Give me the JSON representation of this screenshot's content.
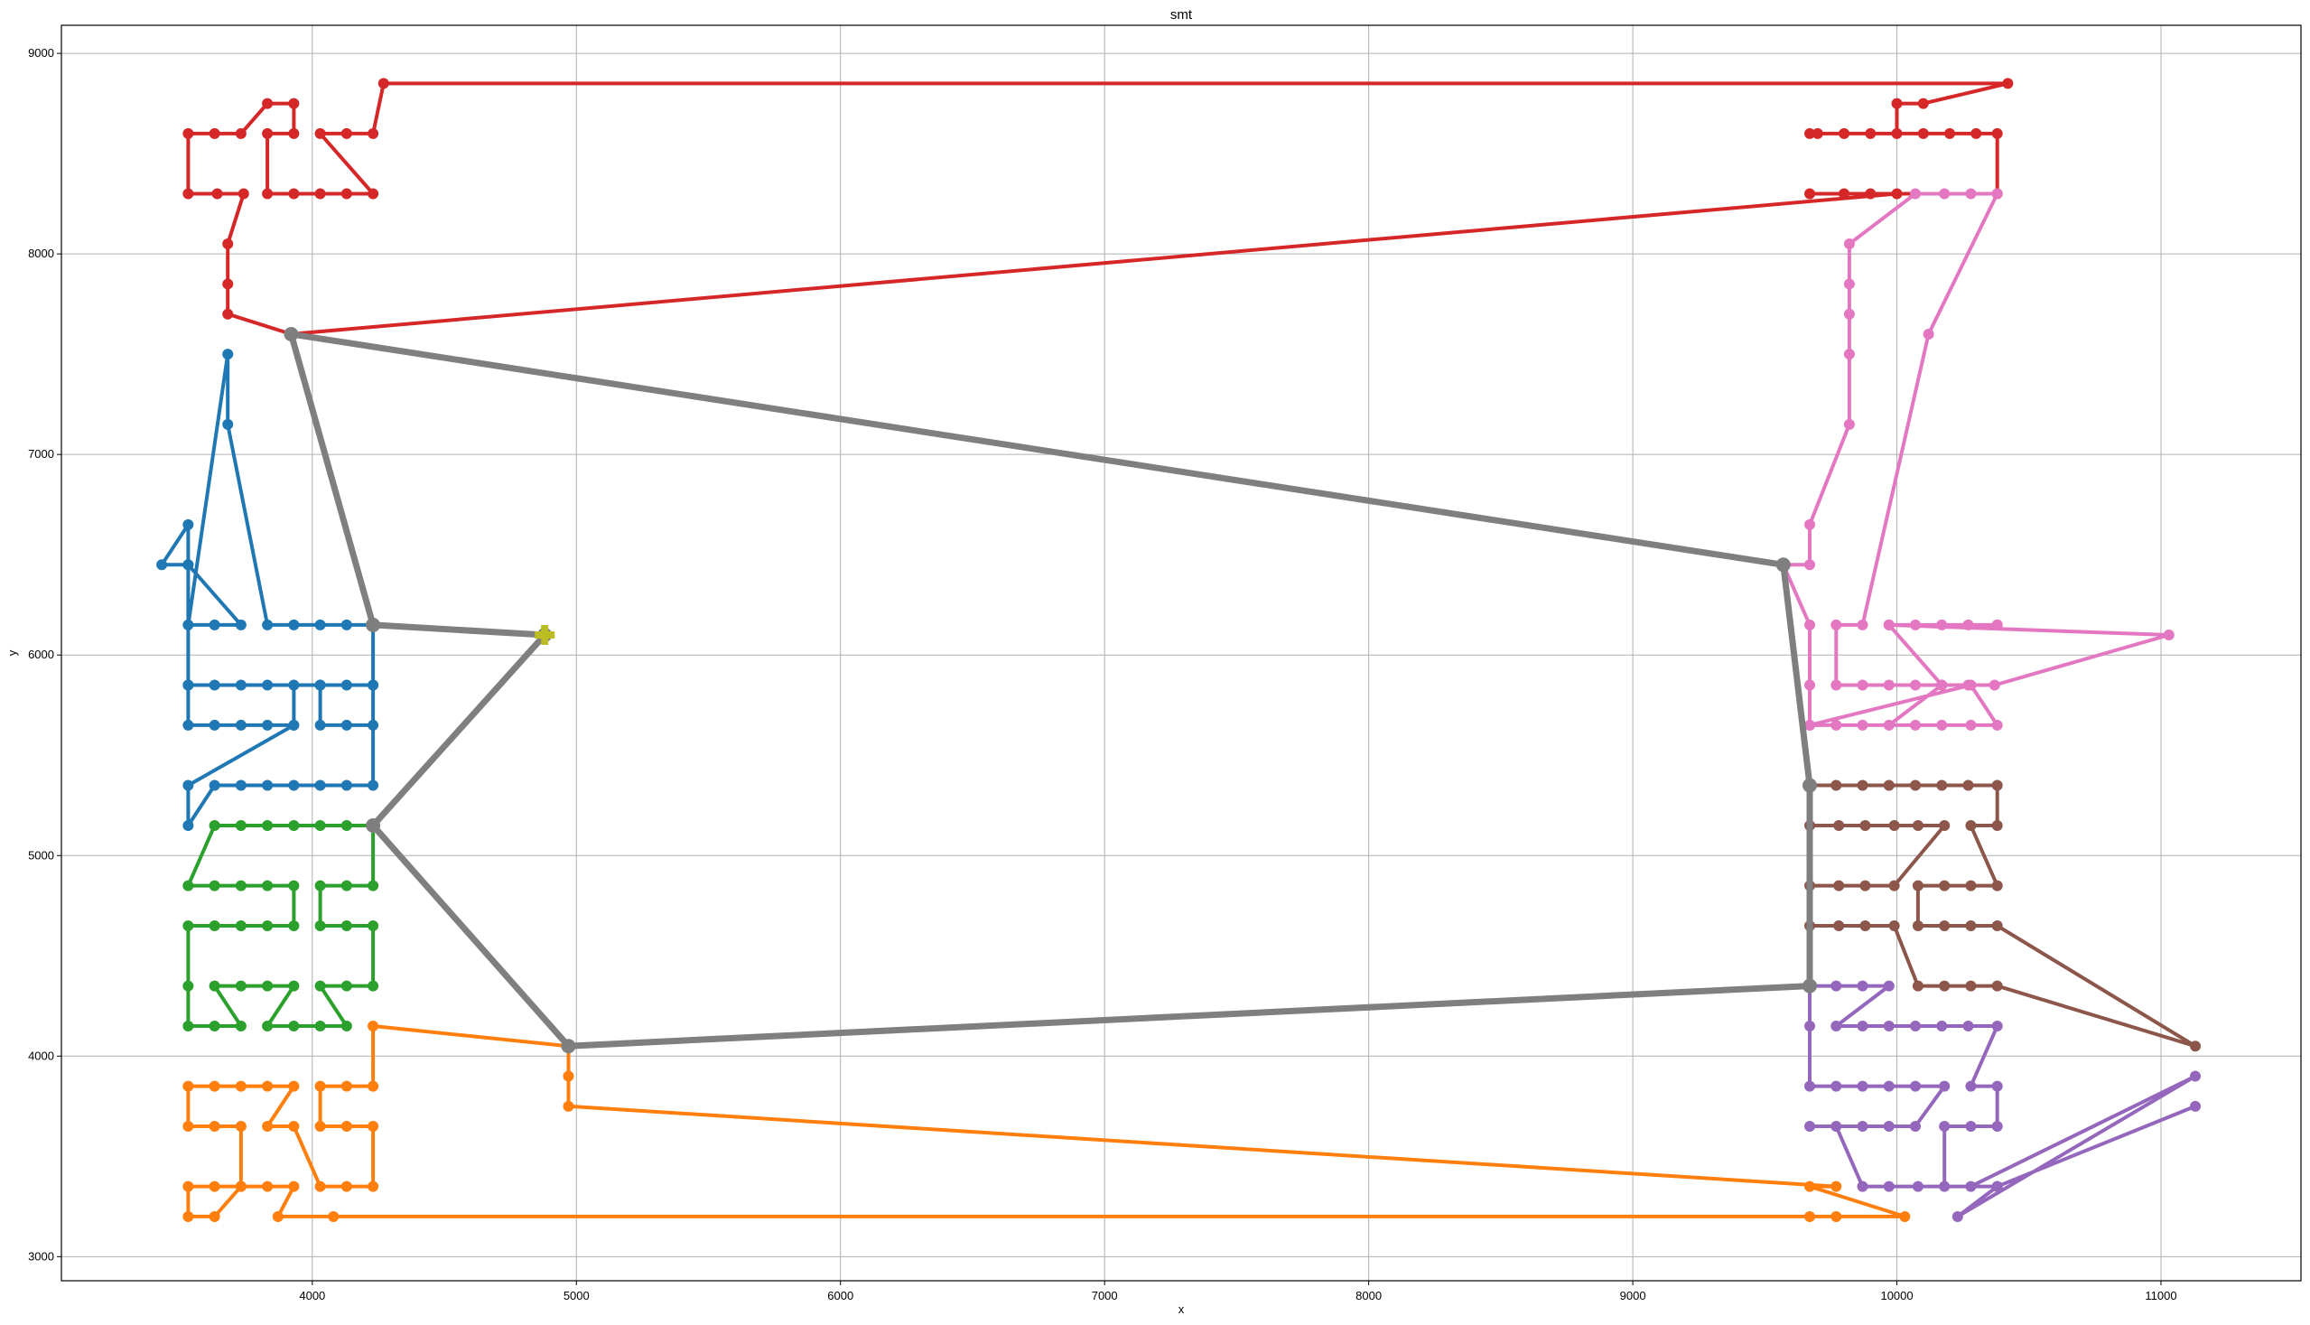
{
  "chart_data": {
    "type": "line",
    "title": "smt",
    "xlabel": "x",
    "ylabel": "y",
    "xlim": [
      3050,
      11530
    ],
    "ylim": [
      2880,
      9140
    ],
    "xticks": [
      4000,
      5000,
      6000,
      7000,
      8000,
      9000,
      10000,
      11000
    ],
    "yticks": [
      3000,
      4000,
      5000,
      6000,
      7000,
      8000,
      9000
    ],
    "grid": true,
    "series": [
      {
        "color": "#d62728",
        "points": [
          [
            3920,
            7600
          ],
          [
            3680,
            7700
          ],
          [
            3680,
            7850
          ],
          [
            3680,
            8050
          ],
          [
            3740,
            8300
          ],
          [
            3640,
            8300
          ],
          [
            3530,
            8300
          ],
          [
            3530,
            8600
          ],
          [
            3630,
            8600
          ],
          [
            3730,
            8600
          ],
          [
            3830,
            8750
          ],
          [
            3930,
            8750
          ],
          [
            3930,
            8600
          ],
          [
            3830,
            8600
          ],
          [
            3830,
            8300
          ],
          [
            3930,
            8300
          ],
          [
            4030,
            8300
          ],
          [
            4130,
            8300
          ],
          [
            4230,
            8300
          ],
          [
            4030,
            8600
          ],
          [
            4130,
            8600
          ],
          [
            4230,
            8600
          ],
          [
            4270,
            8850
          ],
          [
            10420,
            8850
          ],
          [
            10100,
            8750
          ],
          [
            10000,
            8750
          ],
          [
            10000,
            8600
          ],
          [
            9900,
            8600
          ],
          [
            9800,
            8600
          ],
          [
            9700,
            8600
          ],
          [
            9670,
            8600
          ],
          [
            10100,
            8600
          ],
          [
            10200,
            8600
          ],
          [
            10300,
            8600
          ],
          [
            10380,
            8600
          ],
          [
            10380,
            8300
          ],
          [
            9670,
            8300
          ],
          [
            9800,
            8300
          ],
          [
            9900,
            8300
          ],
          [
            10000,
            8300
          ],
          [
            3920,
            7600
          ]
        ]
      },
      {
        "color": "#1f77b4",
        "points": [
          [
            4230,
            6150
          ],
          [
            4130,
            6150
          ],
          [
            4030,
            6150
          ],
          [
            3930,
            6150
          ],
          [
            3830,
            6150
          ],
          [
            3680,
            7150
          ],
          [
            3680,
            7500
          ],
          [
            3530,
            6150
          ],
          [
            3630,
            6150
          ],
          [
            3730,
            6150
          ],
          [
            3530,
            6450
          ],
          [
            3430,
            6450
          ],
          [
            3530,
            6650
          ],
          [
            3530,
            6450
          ],
          [
            3530,
            5850
          ],
          [
            3630,
            5850
          ],
          [
            3730,
            5850
          ],
          [
            3830,
            5850
          ],
          [
            3930,
            5850
          ],
          [
            3930,
            5650
          ],
          [
            3830,
            5650
          ],
          [
            3730,
            5650
          ],
          [
            3630,
            5650
          ],
          [
            3530,
            5650
          ],
          [
            3530,
            5850
          ],
          [
            4030,
            5850
          ],
          [
            4230,
            5850
          ],
          [
            4230,
            5650
          ],
          [
            4130,
            5650
          ],
          [
            4030,
            5650
          ],
          [
            4030,
            5850
          ],
          [
            4130,
            5850
          ],
          [
            4230,
            5850
          ],
          [
            4230,
            6150
          ],
          [
            4230,
            5350
          ],
          [
            4130,
            5350
          ],
          [
            4030,
            5350
          ],
          [
            3930,
            5350
          ],
          [
            3830,
            5350
          ],
          [
            3730,
            5350
          ],
          [
            3630,
            5350
          ],
          [
            3530,
            5150
          ],
          [
            3530,
            5350
          ],
          [
            3930,
            5650
          ]
        ]
      },
      {
        "color": "#2ca02c",
        "points": [
          [
            4230,
            5150
          ],
          [
            4130,
            5150
          ],
          [
            4030,
            5150
          ],
          [
            3930,
            5150
          ],
          [
            3830,
            5150
          ],
          [
            3730,
            5150
          ],
          [
            3630,
            5150
          ],
          [
            3530,
            4850
          ],
          [
            3630,
            4850
          ],
          [
            3730,
            4850
          ],
          [
            3830,
            4850
          ],
          [
            3930,
            4850
          ],
          [
            3930,
            4650
          ],
          [
            3830,
            4650
          ],
          [
            3730,
            4650
          ],
          [
            3630,
            4650
          ],
          [
            3530,
            4650
          ],
          [
            3530,
            4350
          ],
          [
            3530,
            4150
          ],
          [
            3630,
            4150
          ],
          [
            3730,
            4150
          ],
          [
            3630,
            4350
          ],
          [
            3730,
            4350
          ],
          [
            3830,
            4350
          ],
          [
            3930,
            4350
          ],
          [
            3830,
            4150
          ],
          [
            3930,
            4150
          ],
          [
            4030,
            4150
          ],
          [
            4130,
            4150
          ],
          [
            4030,
            4350
          ],
          [
            4130,
            4350
          ],
          [
            4230,
            4350
          ],
          [
            4230,
            4650
          ],
          [
            4130,
            4650
          ],
          [
            4030,
            4650
          ],
          [
            4030,
            4850
          ],
          [
            4130,
            4850
          ],
          [
            4230,
            4850
          ],
          [
            4230,
            5150
          ]
        ]
      },
      {
        "color": "#ff7f0e",
        "points": [
          [
            4970,
            4050
          ],
          [
            4230,
            4150
          ],
          [
            4230,
            3850
          ],
          [
            4130,
            3850
          ],
          [
            4030,
            3850
          ],
          [
            4030,
            3650
          ],
          [
            4130,
            3650
          ],
          [
            4230,
            3650
          ],
          [
            4230,
            3350
          ],
          [
            4130,
            3350
          ],
          [
            4030,
            3350
          ],
          [
            3930,
            3650
          ],
          [
            3830,
            3650
          ],
          [
            3930,
            3850
          ],
          [
            3830,
            3850
          ],
          [
            3730,
            3850
          ],
          [
            3630,
            3850
          ],
          [
            3530,
            3850
          ],
          [
            3530,
            3650
          ],
          [
            3630,
            3650
          ],
          [
            3730,
            3650
          ],
          [
            3730,
            3350
          ],
          [
            3630,
            3350
          ],
          [
            3530,
            3350
          ],
          [
            3530,
            3200
          ],
          [
            3630,
            3200
          ],
          [
            3730,
            3350
          ],
          [
            3830,
            3350
          ],
          [
            3930,
            3350
          ],
          [
            3870,
            3200
          ],
          [
            4080,
            3200
          ],
          [
            9670,
            3200
          ],
          [
            9770,
            3200
          ],
          [
            10030,
            3200
          ],
          [
            9670,
            3350
          ],
          [
            9770,
            3350
          ],
          [
            4970,
            3750
          ],
          [
            4970,
            3900
          ],
          [
            4970,
            4050
          ]
        ]
      },
      {
        "color": "#e377c2",
        "points": [
          [
            9570,
            6450
          ],
          [
            9670,
            6450
          ],
          [
            9670,
            6650
          ],
          [
            9820,
            7150
          ],
          [
            9820,
            7500
          ],
          [
            9820,
            7700
          ],
          [
            9820,
            7850
          ],
          [
            9820,
            8050
          ],
          [
            10070,
            8300
          ],
          [
            10180,
            8300
          ],
          [
            10280,
            8300
          ],
          [
            10380,
            8300
          ],
          [
            10120,
            7600
          ],
          [
            9870,
            6150
          ],
          [
            9770,
            6150
          ],
          [
            9770,
            5850
          ],
          [
            9870,
            5850
          ],
          [
            9970,
            5850
          ],
          [
            10070,
            5850
          ],
          [
            10170,
            5850
          ],
          [
            10270,
            5850
          ],
          [
            10370,
            5850
          ],
          [
            11030,
            6100
          ],
          [
            9970,
            6150
          ],
          [
            10070,
            6150
          ],
          [
            10170,
            6150
          ],
          [
            10270,
            6150
          ],
          [
            10380,
            6150
          ],
          [
            10380,
            6150
          ],
          [
            9970,
            6150
          ],
          [
            10170,
            5850
          ],
          [
            9970,
            5650
          ],
          [
            9870,
            5650
          ],
          [
            9770,
            5650
          ],
          [
            9670,
            5650
          ],
          [
            10070,
            5650
          ],
          [
            10170,
            5650
          ],
          [
            10280,
            5650
          ],
          [
            10380,
            5650
          ],
          [
            10280,
            5850
          ],
          [
            9670,
            5650
          ],
          [
            9670,
            5850
          ],
          [
            9670,
            6150
          ],
          [
            9570,
            6450
          ]
        ]
      },
      {
        "color": "#8c564b",
        "points": [
          [
            9670,
            5350
          ],
          [
            9770,
            5350
          ],
          [
            9870,
            5350
          ],
          [
            9970,
            5350
          ],
          [
            10070,
            5350
          ],
          [
            10170,
            5350
          ],
          [
            10270,
            5350
          ],
          [
            10380,
            5350
          ],
          [
            10380,
            5150
          ],
          [
            10280,
            5150
          ],
          [
            10380,
            4850
          ],
          [
            10280,
            4850
          ],
          [
            10180,
            4850
          ],
          [
            10080,
            4850
          ],
          [
            10080,
            4650
          ],
          [
            10180,
            4650
          ],
          [
            10280,
            4650
          ],
          [
            10380,
            4650
          ],
          [
            11130,
            4050
          ],
          [
            10380,
            4350
          ],
          [
            10280,
            4350
          ],
          [
            10180,
            4350
          ],
          [
            10080,
            4350
          ],
          [
            9990,
            4650
          ],
          [
            9880,
            4650
          ],
          [
            9780,
            4650
          ],
          [
            9670,
            4650
          ],
          [
            9670,
            4850
          ],
          [
            9780,
            4850
          ],
          [
            9880,
            4850
          ],
          [
            9990,
            4850
          ],
          [
            10180,
            5150
          ],
          [
            10080,
            5150
          ],
          [
            9990,
            5150
          ],
          [
            9880,
            5150
          ],
          [
            9780,
            5150
          ],
          [
            9670,
            5150
          ],
          [
            9670,
            5350
          ]
        ]
      },
      {
        "color": "#9467bd",
        "points": [
          [
            9670,
            4350
          ],
          [
            9770,
            4350
          ],
          [
            9870,
            4350
          ],
          [
            9970,
            4350
          ],
          [
            9770,
            4150
          ],
          [
            9870,
            4150
          ],
          [
            9970,
            4150
          ],
          [
            10070,
            4150
          ],
          [
            10170,
            4150
          ],
          [
            10270,
            4150
          ],
          [
            10380,
            4150
          ],
          [
            10280,
            3850
          ],
          [
            10380,
            3850
          ],
          [
            10380,
            3650
          ],
          [
            10280,
            3650
          ],
          [
            10180,
            3650
          ],
          [
            10180,
            3350
          ],
          [
            10280,
            3350
          ],
          [
            11130,
            3900
          ],
          [
            10230,
            3200
          ],
          [
            10380,
            3350
          ],
          [
            11130,
            3750
          ],
          [
            10380,
            3350
          ],
          [
            10080,
            3350
          ],
          [
            9970,
            3350
          ],
          [
            9870,
            3350
          ],
          [
            9770,
            3650
          ],
          [
            9670,
            3650
          ],
          [
            9870,
            3650
          ],
          [
            9970,
            3650
          ],
          [
            10070,
            3650
          ],
          [
            10180,
            3850
          ],
          [
            10070,
            3850
          ],
          [
            9970,
            3850
          ],
          [
            9870,
            3850
          ],
          [
            9770,
            3850
          ],
          [
            9670,
            3850
          ],
          [
            9670,
            4150
          ],
          [
            9670,
            4350
          ]
        ]
      },
      {
        "color": "#7f7f7f",
        "role": "trunk",
        "points": [
          [
            4880,
            6100
          ],
          [
            4230,
            6150
          ],
          [
            3920,
            7600
          ],
          [
            9570,
            6450
          ],
          [
            9670,
            5350
          ],
          [
            9670,
            4350
          ],
          [
            4970,
            4050
          ],
          [
            4230,
            5150
          ],
          [
            4880,
            6100
          ]
        ]
      }
    ],
    "annotations": [
      {
        "marker": "plus",
        "color": "#bcbd22",
        "x": 4880,
        "y": 6100
      }
    ]
  }
}
